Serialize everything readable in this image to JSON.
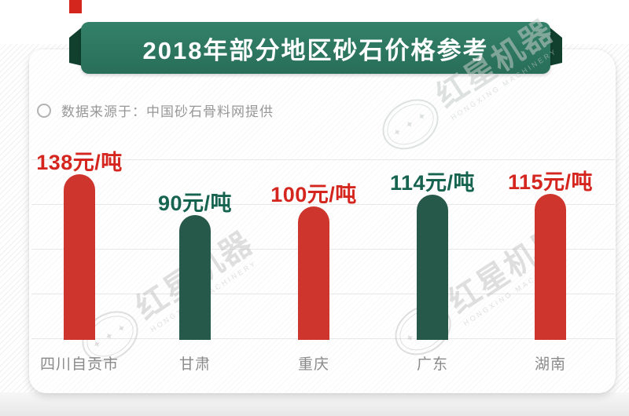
{
  "title": {
    "text": "2018年部分地区砂石价格参考"
  },
  "source": {
    "text": "数据来源于：中国砂石骨料网提供",
    "bullet_icon": "circle-outline"
  },
  "chart_data": {
    "type": "bar",
    "title": "2018年部分地区砂石价格参考",
    "categories": [
      "四川自贡市",
      "甘肃",
      "重庆",
      "广东",
      "湖南"
    ],
    "values": [
      138,
      90,
      100,
      114,
      115
    ],
    "unit": "元/吨",
    "value_labels": [
      "138元/吨",
      "90元/吨",
      "100元/吨",
      "114元/吨",
      "115元/吨"
    ],
    "series": [
      {
        "name": "砂石价格",
        "values": [
          138,
          90,
          100,
          114,
          115
        ]
      }
    ],
    "xlabel": "",
    "ylabel": "",
    "grid": true,
    "legend": false,
    "bar_colors": [
      "#ce362d",
      "#27594a",
      "#ce362d",
      "#27594a",
      "#ce362d"
    ],
    "value_label_colors": [
      "#d4261e",
      "#166350",
      "#d4261e",
      "#166350",
      "#d4261e"
    ]
  },
  "watermark": {
    "cn": "红星机器",
    "en": "HONGXING MACHINERY",
    "stars": "✦ ✦ ✦",
    "badge_icon": "star-oval-badge"
  },
  "colors": {
    "ribbon_green": "#2e7c66",
    "ribbon_fold": "#11402f",
    "red_tab": "#d5261e",
    "bar_red": "#ce362d",
    "bar_green": "#27594a",
    "text_red": "#d4261e",
    "text_green": "#166350",
    "category_gray": "#8a8a8a",
    "source_gray": "#979797",
    "gridline": "#e7e7e7",
    "watermark_gray": "#b4b4b4"
  }
}
